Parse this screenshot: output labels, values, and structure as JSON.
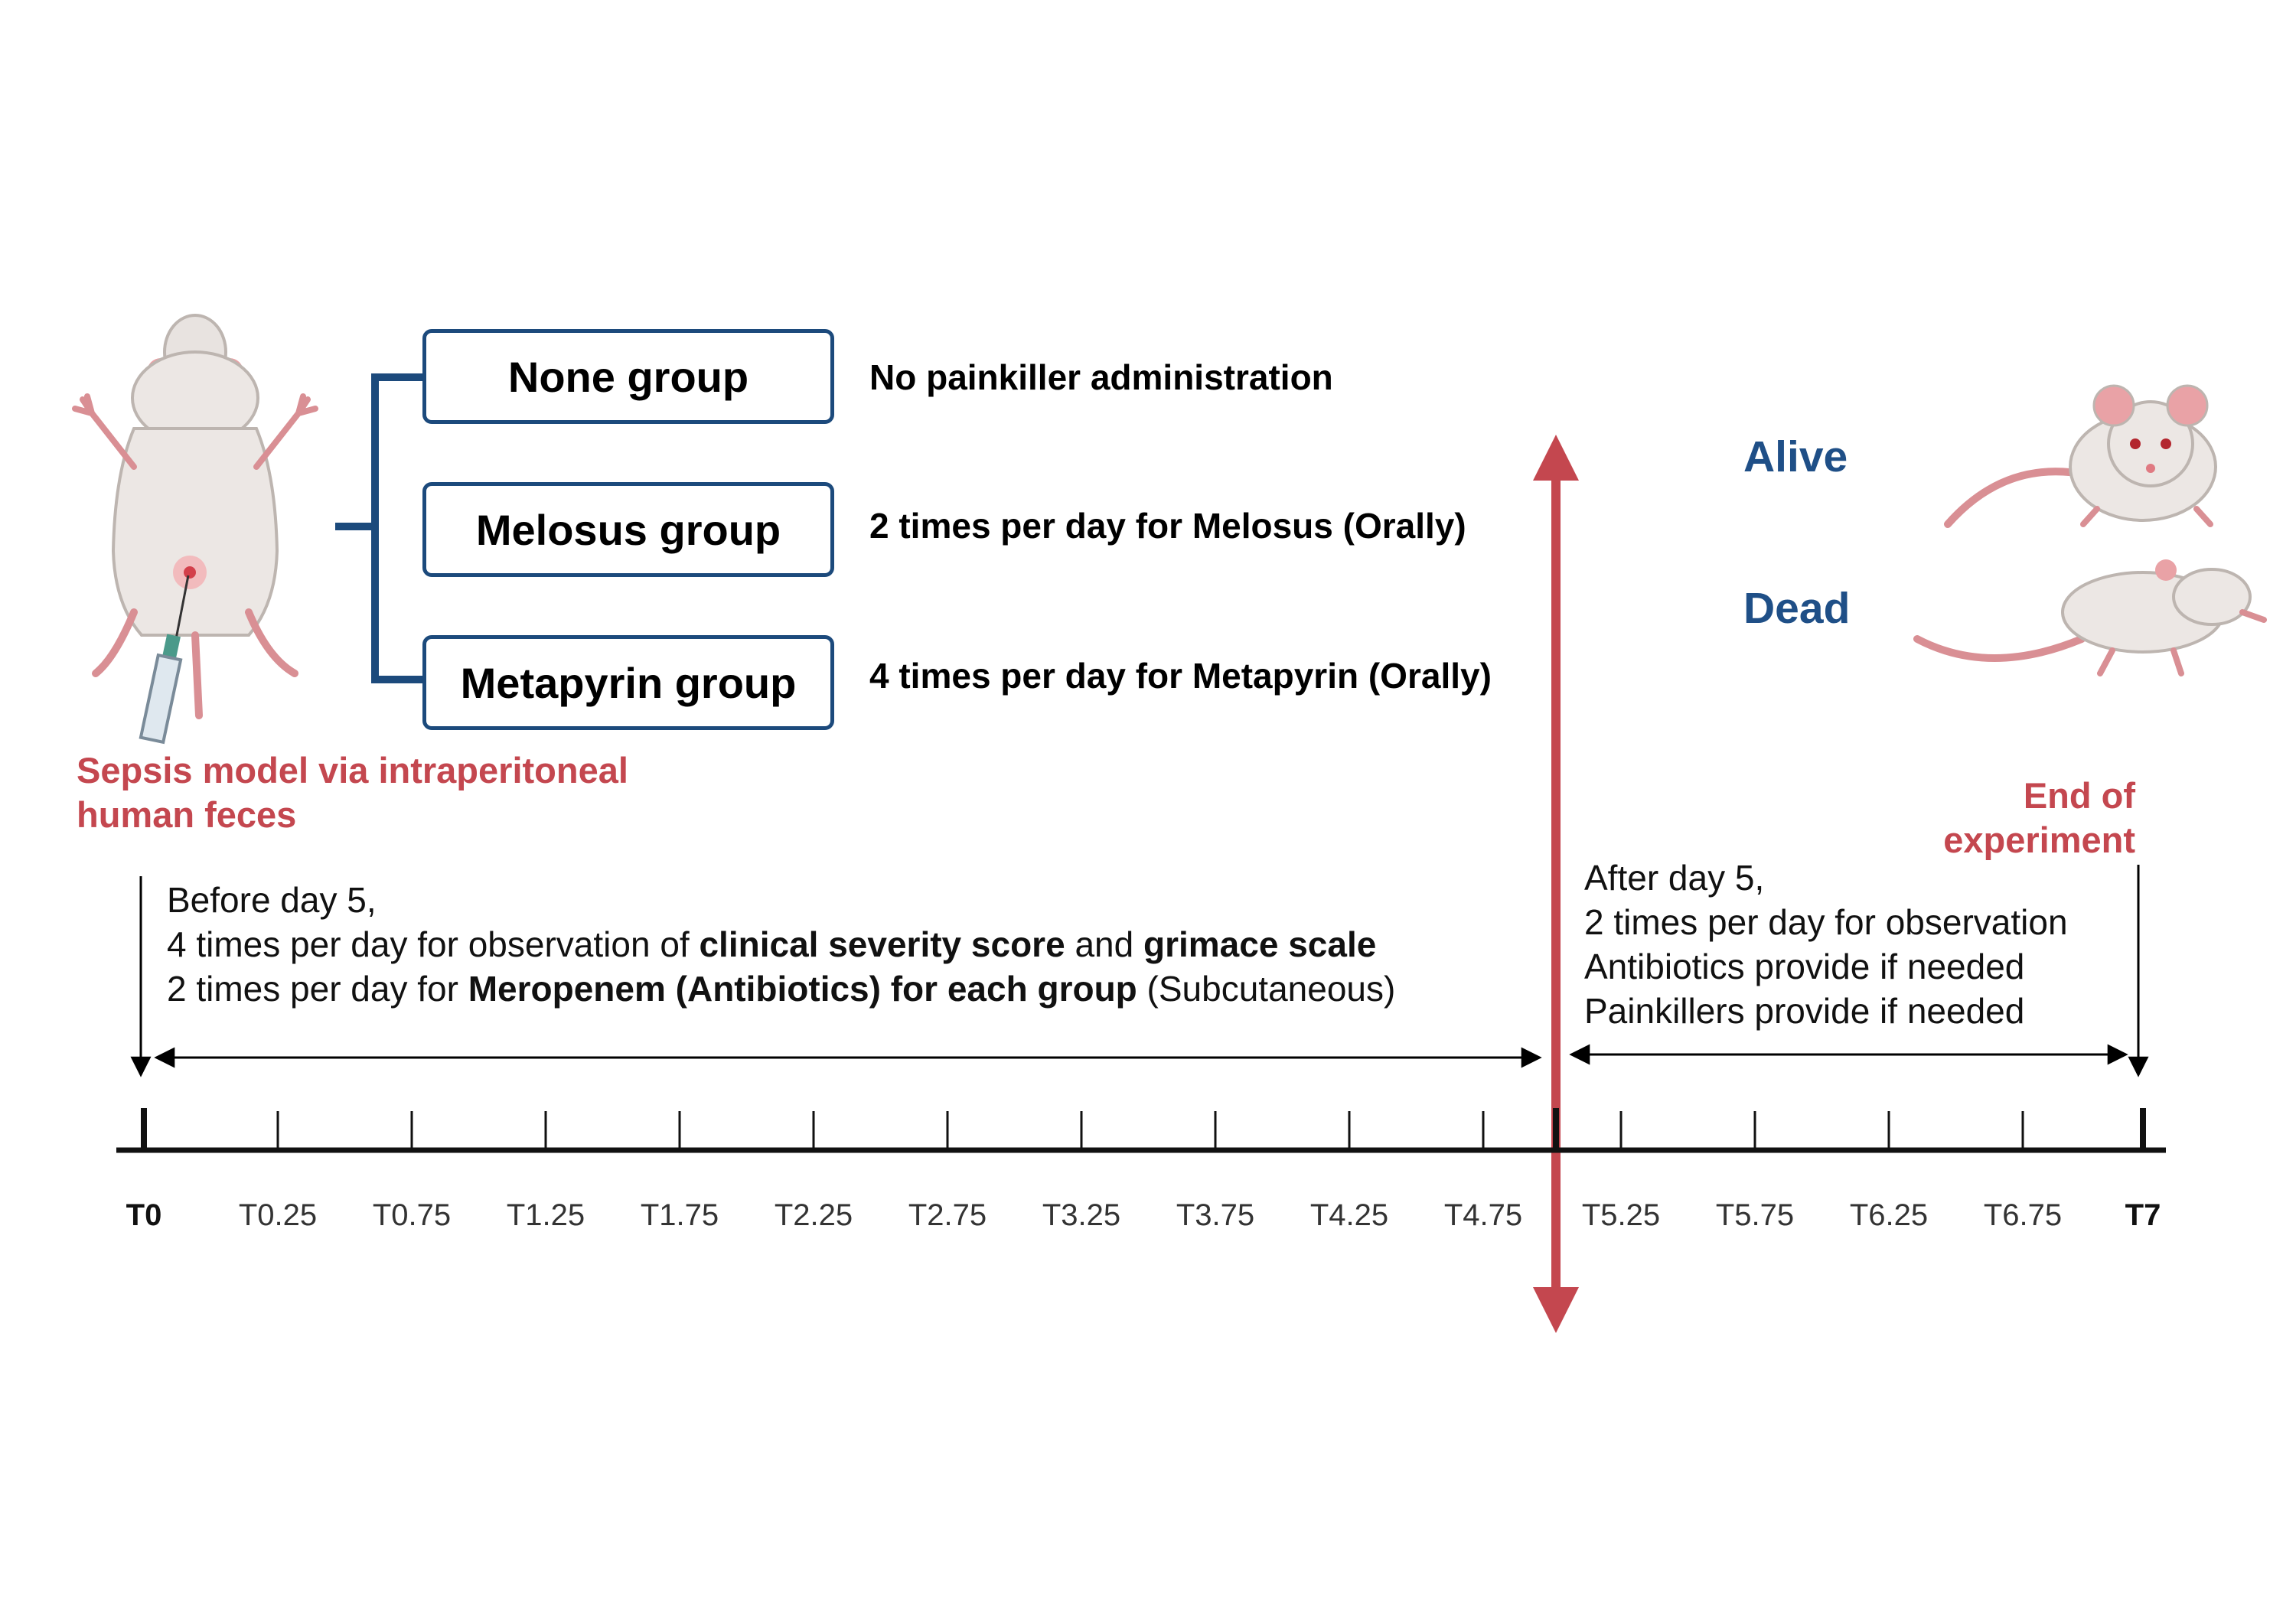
{
  "groups": [
    {
      "name": "None group",
      "dose": "No painkiller administration"
    },
    {
      "name": "Melosus group",
      "dose": "2 times per day for Melosus (Orally)"
    },
    {
      "name": "Metapyrin group",
      "dose": "4 times per day for Metapyrin (Orally)"
    }
  ],
  "sepsis_label": [
    "Sepsis model via intraperitoneal",
    "human feces"
  ],
  "end_label": [
    "End of",
    "experiment"
  ],
  "outcomes": {
    "alive": "Alive",
    "dead": "Dead"
  },
  "before_day5": {
    "line1": "Before day 5,",
    "line2": {
      "a": "4 times per day for observation of ",
      "b": "clinical severity score",
      "c": "  and ",
      "d": "grimace scale"
    },
    "line3": {
      "a": "2 times per day for ",
      "b": "Meropenem (Antibiotics) for each group",
      "c": " (Subcutaneous)"
    }
  },
  "after_day5": [
    "After day 5,",
    "2 times per day for observation",
    "Antibiotics provide if needed",
    "Painkillers provide if needed"
  ],
  "timeline": {
    "labels": [
      "T0",
      "T0.25",
      "T0.75",
      "T1.25",
      "T1.75",
      "T2.25",
      "T2.75",
      "T3.25",
      "T3.75",
      "T4.25",
      "T4.75",
      "T5.25",
      "T5.75",
      "T6.25",
      "T6.75",
      "T7"
    ],
    "bold_labels": [
      "T0",
      "T7"
    ]
  },
  "colors": {
    "accent_red": "#c4474f",
    "group_blue": "#1c4a7c",
    "outcome_blue": "#1f4f87"
  }
}
